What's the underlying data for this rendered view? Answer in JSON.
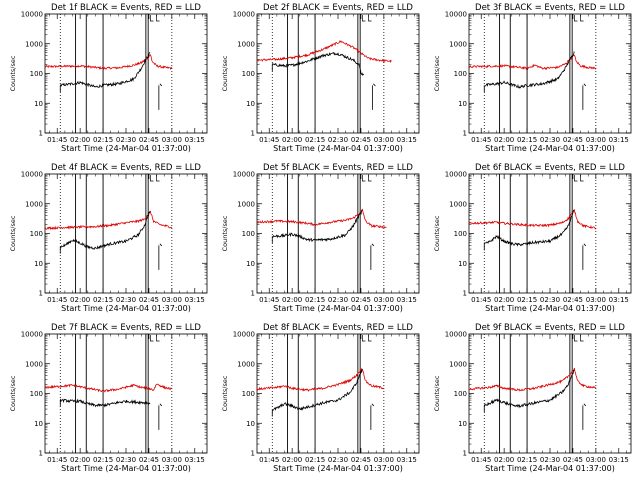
{
  "chart_data": {
    "type": "line",
    "layout": "3x3 grid of panels",
    "x_tick_labels": [
      "01:45",
      "02:00",
      "02:15",
      "02:30",
      "02:45",
      "03:00",
      "03:15"
    ],
    "x_tick_minutes": [
      105,
      120,
      135,
      150,
      165,
      180,
      195
    ],
    "xlim_minutes": [
      97,
      203
    ],
    "y_scale": "log",
    "ylim": [
      1,
      10000
    ],
    "y_tick_values": [
      1,
      10,
      100,
      1000,
      10000
    ],
    "y_tick_labels": [
      "1",
      "10",
      "100",
      "1000",
      "10000"
    ],
    "colors": {
      "events": "#000000",
      "lld": "#dd0000"
    },
    "vertical_lines": {
      "dotted": [
        107,
        180
      ],
      "solid": [
        117,
        124,
        135,
        163,
        164.5
      ]
    },
    "panels": [
      {
        "title": "Det 1f BLACK = Events, RED = LLD",
        "ylabel": "Counts/sec",
        "xlabel": "Start Time (24-Mar-04 01:37:00)",
        "series": [
          {
            "role": "lld",
            "x": [
              97,
              110,
              120,
              130,
              135,
              145,
              155,
              160,
              164,
              166,
              167,
              170,
              175,
              180
            ],
            "y": [
              170,
              175,
              180,
              160,
              150,
              155,
              190,
              230,
              330,
              440,
              260,
              180,
              160,
              150
            ]
          },
          {
            "role": "events",
            "x": [
              107,
              115,
              120,
              125,
              130,
              135,
              145,
              155,
              160,
              163,
              165,
              166
            ],
            "y": [
              40,
              45,
              50,
              42,
              35,
              40,
              45,
              65,
              150,
              300,
              420,
              550
            ]
          }
        ]
      },
      {
        "title": "Det 2f BLACK = Events, RED = LLD",
        "ylabel": "Counts/sec",
        "xlabel": "Start Time (24-Mar-04 01:37:00)",
        "series": [
          {
            "role": "lld",
            "x": [
              97,
              110,
              120,
              130,
              140,
              148,
              152,
              160,
              165,
              170,
              175,
              180,
              185
            ],
            "y": [
              280,
              300,
              340,
              420,
              640,
              980,
              1200,
              750,
              480,
              320,
              290,
              270,
              260
            ]
          },
          {
            "role": "events",
            "x": [
              107,
              115,
              120,
              130,
              140,
              148,
              152,
              160,
              164,
              165,
              167
            ],
            "y": [
              200,
              180,
              190,
              260,
              400,
              480,
              430,
              280,
              190,
              100,
              90
            ]
          }
        ]
      },
      {
        "title": "Det 3f BLACK = Events, RED = LLD",
        "ylabel": "Counts/sec",
        "xlabel": "Start Time (24-Mar-04 01:37:00)",
        "series": [
          {
            "role": "lld",
            "x": [
              97,
              110,
              120,
              130,
              135,
              140,
              145,
              155,
              160,
              164,
              166,
              167,
              170,
              175,
              180
            ],
            "y": [
              170,
              175,
              180,
              160,
              150,
              190,
              150,
              160,
              210,
              330,
              440,
              260,
              180,
              160,
              150
            ]
          },
          {
            "role": "events",
            "x": [
              107,
              115,
              120,
              125,
              130,
              135,
              145,
              155,
              160,
              163,
              165,
              166
            ],
            "y": [
              40,
              45,
              50,
              42,
              35,
              40,
              45,
              65,
              150,
              300,
              420,
              550
            ]
          }
        ]
      },
      {
        "title": "Det 4f BLACK = Events, RED = LLD",
        "ylabel": "Counts/sec",
        "xlabel": "Start Time (24-Mar-04 01:37:00)",
        "series": [
          {
            "role": "lld",
            "x": [
              97,
              110,
              120,
              130,
              140,
              150,
              158,
              162,
              164,
              166,
              168,
              172,
              178,
              180
            ],
            "y": [
              150,
              160,
              165,
              170,
              190,
              230,
              260,
              300,
              420,
              540,
              260,
              200,
              170,
              160
            ]
          },
          {
            "role": "events",
            "x": [
              107,
              110,
              115,
              120,
              125,
              130,
              140,
              150,
              158,
              162,
              164,
              166
            ],
            "y": [
              35,
              40,
              60,
              48,
              35,
              32,
              45,
              55,
              90,
              180,
              350,
              600
            ]
          }
        ]
      },
      {
        "title": "Det 5f BLACK = Events, RED = LLD",
        "ylabel": "Counts/sec",
        "xlabel": "Start Time (24-Mar-04 01:37:00)",
        "series": [
          {
            "role": "lld",
            "x": [
              97,
              110,
              120,
              130,
              135,
              145,
              155,
              160,
              164,
              166,
              168,
              172,
              178,
              182
            ],
            "y": [
              240,
              260,
              250,
              220,
              200,
              240,
              280,
              330,
              480,
              620,
              260,
              180,
              170,
              160
            ]
          },
          {
            "role": "events",
            "x": [
              107,
              115,
              120,
              125,
              130,
              135,
              145,
              155,
              160,
              163,
              165,
              166
            ],
            "y": [
              80,
              85,
              95,
              80,
              62,
              60,
              65,
              90,
              180,
              350,
              480,
              600
            ]
          }
        ]
      },
      {
        "title": "Det 6f BLACK = Events, RED = LLD",
        "ylabel": "Counts/sec",
        "xlabel": "Start Time (24-Mar-04 01:37:00)",
        "series": [
          {
            "role": "lld",
            "x": [
              97,
              110,
              115,
              120,
              130,
              140,
              150,
              158,
              162,
              164,
              166,
              168,
              172,
              178,
              180
            ],
            "y": [
              220,
              230,
              240,
              220,
              200,
              185,
              190,
              230,
              320,
              460,
              600,
              260,
              180,
              160,
              150
            ]
          },
          {
            "role": "events",
            "x": [
              107,
              110,
              115,
              120,
              125,
              130,
              140,
              150,
              158,
              162,
              164,
              166
            ],
            "y": [
              45,
              50,
              80,
              55,
              45,
              42,
              50,
              55,
              95,
              180,
              350,
              650
            ]
          }
        ]
      },
      {
        "title": "Det 7f BLACK = Events, RED = LLD",
        "ylabel": "Counts/sec",
        "xlabel": "Start Time (24-Mar-04 01:37:00)",
        "series": [
          {
            "role": "lld",
            "x": [
              97,
              105,
              115,
              125,
              135,
              145,
              155,
              160,
              165,
              168,
              170,
              175,
              180
            ],
            "y": [
              160,
              170,
              190,
              150,
              120,
              140,
              190,
              160,
              150,
              130,
              210,
              160,
              140
            ]
          },
          {
            "role": "events",
            "x": [
              107,
              110,
              115,
              120,
              125,
              130,
              135,
              140,
              145,
              150,
              155,
              160,
              165,
              166
            ],
            "y": [
              60,
              58,
              55,
              55,
              45,
              40,
              40,
              44,
              50,
              55,
              52,
              50,
              48,
              45
            ]
          }
        ]
      },
      {
        "title": "Det 8f BLACK = Events, RED = LLD",
        "ylabel": "Counts/sec",
        "xlabel": "Start Time (24-Mar-04 01:37:00)",
        "series": [
          {
            "role": "lld",
            "x": [
              97,
              110,
              115,
              120,
              130,
              140,
              150,
              158,
              162,
              164,
              166,
              168,
              172,
              178,
              180
            ],
            "y": [
              140,
              160,
              180,
              150,
              130,
              150,
              200,
              280,
              400,
              550,
              700,
              260,
              180,
              160,
              150
            ]
          },
          {
            "role": "events",
            "x": [
              107,
              110,
              115,
              120,
              125,
              130,
              140,
              150,
              158,
              162,
              164,
              166
            ],
            "y": [
              28,
              32,
              45,
              38,
              30,
              35,
              48,
              60,
              110,
              220,
              400,
              650
            ]
          }
        ]
      },
      {
        "title": "Det 9f BLACK = Events, RED = LLD",
        "ylabel": "Counts/sec",
        "xlabel": "Start Time (24-Mar-04 01:37:00)",
        "series": [
          {
            "role": "lld",
            "x": [
              97,
              110,
              115,
              120,
              130,
              140,
              150,
              158,
              162,
              164,
              166,
              168,
              172,
              178,
              180
            ],
            "y": [
              140,
              160,
              180,
              150,
              130,
              150,
              200,
              260,
              380,
              520,
              680,
              260,
              180,
              160,
              150
            ]
          },
          {
            "role": "events",
            "x": [
              107,
              110,
              115,
              120,
              125,
              130,
              140,
              150,
              158,
              162,
              164,
              166
            ],
            "y": [
              40,
              45,
              60,
              50,
              40,
              38,
              48,
              60,
              110,
              200,
              380,
              620
            ]
          }
        ]
      }
    ]
  }
}
